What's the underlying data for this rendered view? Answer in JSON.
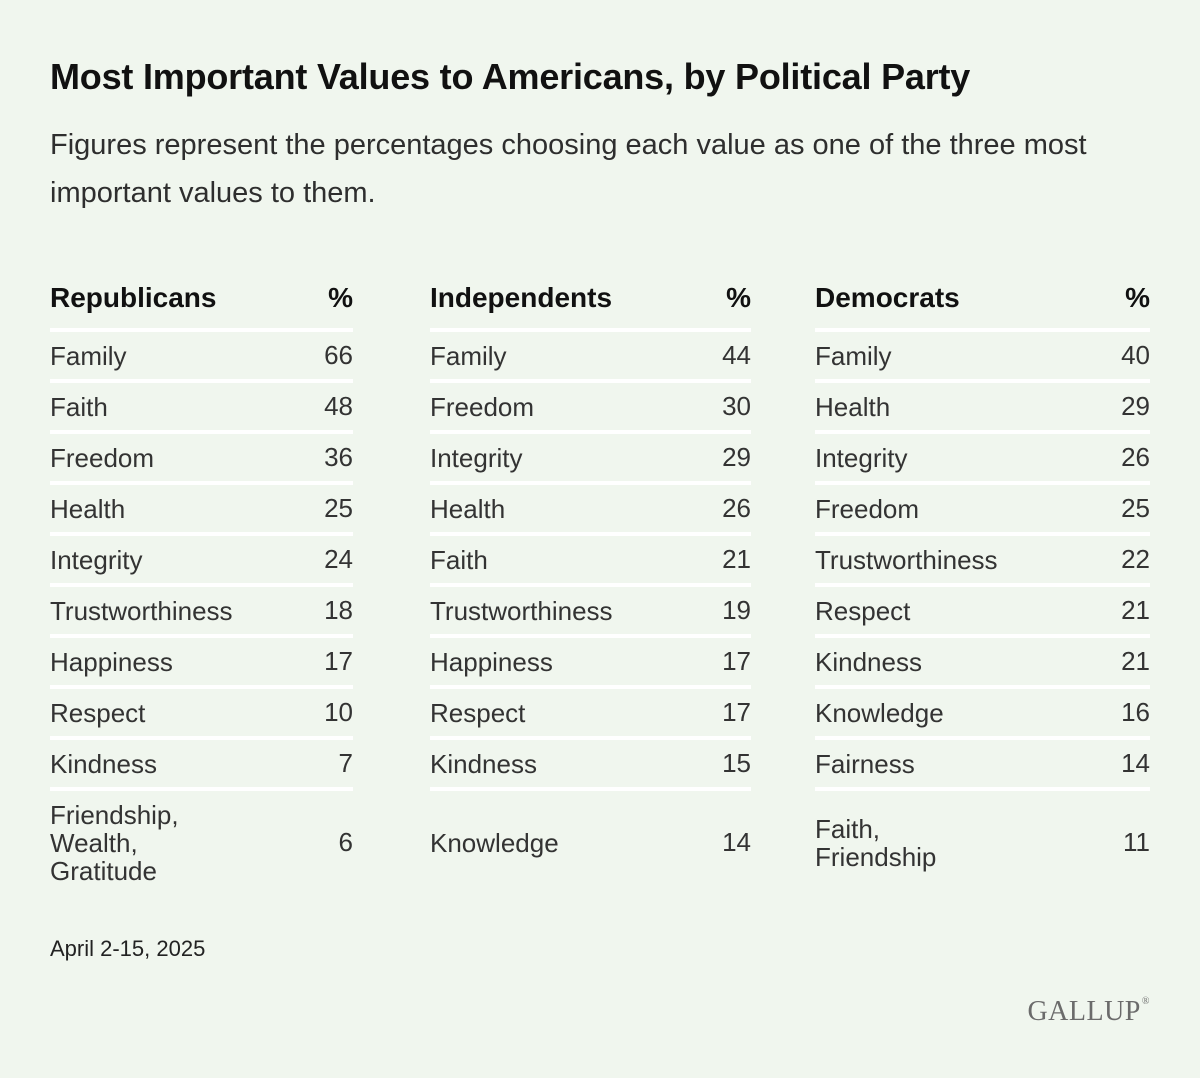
{
  "title": "Most Important Values to Americans, by Political Party",
  "subtitle": "Figures represent the percentages choosing each value as one of the three most important values to them.",
  "footnote": "April 2-15, 2025",
  "logo": "GALLUP",
  "chart_data": {
    "type": "table",
    "title": "Most Important Values to Americans, by Political Party",
    "value_header": "%",
    "columns": [
      {
        "party": "Republicans",
        "rows": [
          {
            "label": "Family",
            "value": "66"
          },
          {
            "label": "Faith",
            "value": "48"
          },
          {
            "label": "Freedom",
            "value": "36"
          },
          {
            "label": "Health",
            "value": "25"
          },
          {
            "label": "Integrity",
            "value": "24"
          },
          {
            "label": "Trustworthiness",
            "value": "18"
          },
          {
            "label": "Happiness",
            "value": "17"
          },
          {
            "label": "Respect",
            "value": "10"
          },
          {
            "label": "Kindness",
            "value": "7"
          },
          {
            "label": "Friendship,\nWealth,\nGratitude",
            "value": "6"
          }
        ]
      },
      {
        "party": "Independents",
        "rows": [
          {
            "label": "Family",
            "value": "44"
          },
          {
            "label": "Freedom",
            "value": "30"
          },
          {
            "label": "Integrity",
            "value": "29"
          },
          {
            "label": "Health",
            "value": "26"
          },
          {
            "label": "Faith",
            "value": "21"
          },
          {
            "label": "Trustworthiness",
            "value": "19"
          },
          {
            "label": "Happiness",
            "value": "17"
          },
          {
            "label": "Respect",
            "value": "17"
          },
          {
            "label": "Kindness",
            "value": "15"
          },
          {
            "label": "Knowledge",
            "value": "14"
          }
        ]
      },
      {
        "party": "Democrats",
        "rows": [
          {
            "label": "Family",
            "value": "40"
          },
          {
            "label": "Health",
            "value": "29"
          },
          {
            "label": "Integrity",
            "value": "26"
          },
          {
            "label": "Freedom",
            "value": "25"
          },
          {
            "label": "Trustworthiness",
            "value": "22"
          },
          {
            "label": "Respect",
            "value": "21"
          },
          {
            "label": "Kindness",
            "value": "21"
          },
          {
            "label": "Knowledge",
            "value": "16"
          },
          {
            "label": "Fairness",
            "value": "14"
          },
          {
            "label": "Faith,\nFriendship",
            "value": "11"
          }
        ]
      }
    ]
  }
}
